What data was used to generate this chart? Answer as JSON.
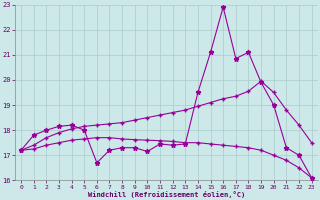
{
  "xlabel": "Windchill (Refroidissement éolien,°C)",
  "background_color": "#cce8e8",
  "grid_color": "#aacccc",
  "line_color": "#990099",
  "xlim": [
    -0.5,
    23.5
  ],
  "ylim": [
    16,
    23
  ],
  "yticks": [
    16,
    17,
    18,
    19,
    20,
    21,
    22,
    23
  ],
  "xticks": [
    0,
    1,
    2,
    3,
    4,
    5,
    6,
    7,
    8,
    9,
    10,
    11,
    12,
    13,
    14,
    15,
    16,
    17,
    18,
    19,
    20,
    21,
    22,
    23
  ],
  "series1_x": [
    0,
    1,
    2,
    3,
    4,
    5,
    6,
    7,
    8,
    9,
    10,
    11,
    12,
    13,
    14,
    15,
    16,
    17,
    18,
    19,
    20,
    21,
    22,
    23
  ],
  "series1_y": [
    17.2,
    17.8,
    18.0,
    18.15,
    18.2,
    18.0,
    16.7,
    17.2,
    17.3,
    17.3,
    17.15,
    17.45,
    17.4,
    17.45,
    19.5,
    21.1,
    22.9,
    20.85,
    21.1,
    19.9,
    19.0,
    17.3,
    17.0,
    16.1
  ],
  "series2_x": [
    0,
    1,
    2,
    3,
    4,
    5,
    6,
    7,
    8,
    9,
    10,
    11,
    12,
    13,
    14,
    15,
    16,
    17,
    18,
    19,
    20,
    21,
    22,
    23
  ],
  "series2_y": [
    17.2,
    17.4,
    17.7,
    17.9,
    18.05,
    18.15,
    18.2,
    18.25,
    18.3,
    18.4,
    18.5,
    18.6,
    18.7,
    18.8,
    18.95,
    19.1,
    19.25,
    19.35,
    19.55,
    19.95,
    19.5,
    18.8,
    18.2,
    17.5
  ],
  "series3_x": [
    0,
    1,
    2,
    3,
    4,
    5,
    6,
    7,
    8,
    9,
    10,
    11,
    12,
    13,
    14,
    15,
    16,
    17,
    18,
    19,
    20,
    21,
    22,
    23
  ],
  "series3_y": [
    17.2,
    17.25,
    17.4,
    17.5,
    17.6,
    17.65,
    17.7,
    17.7,
    17.65,
    17.62,
    17.6,
    17.58,
    17.55,
    17.5,
    17.5,
    17.45,
    17.4,
    17.35,
    17.3,
    17.2,
    17.0,
    16.8,
    16.5,
    16.1
  ]
}
